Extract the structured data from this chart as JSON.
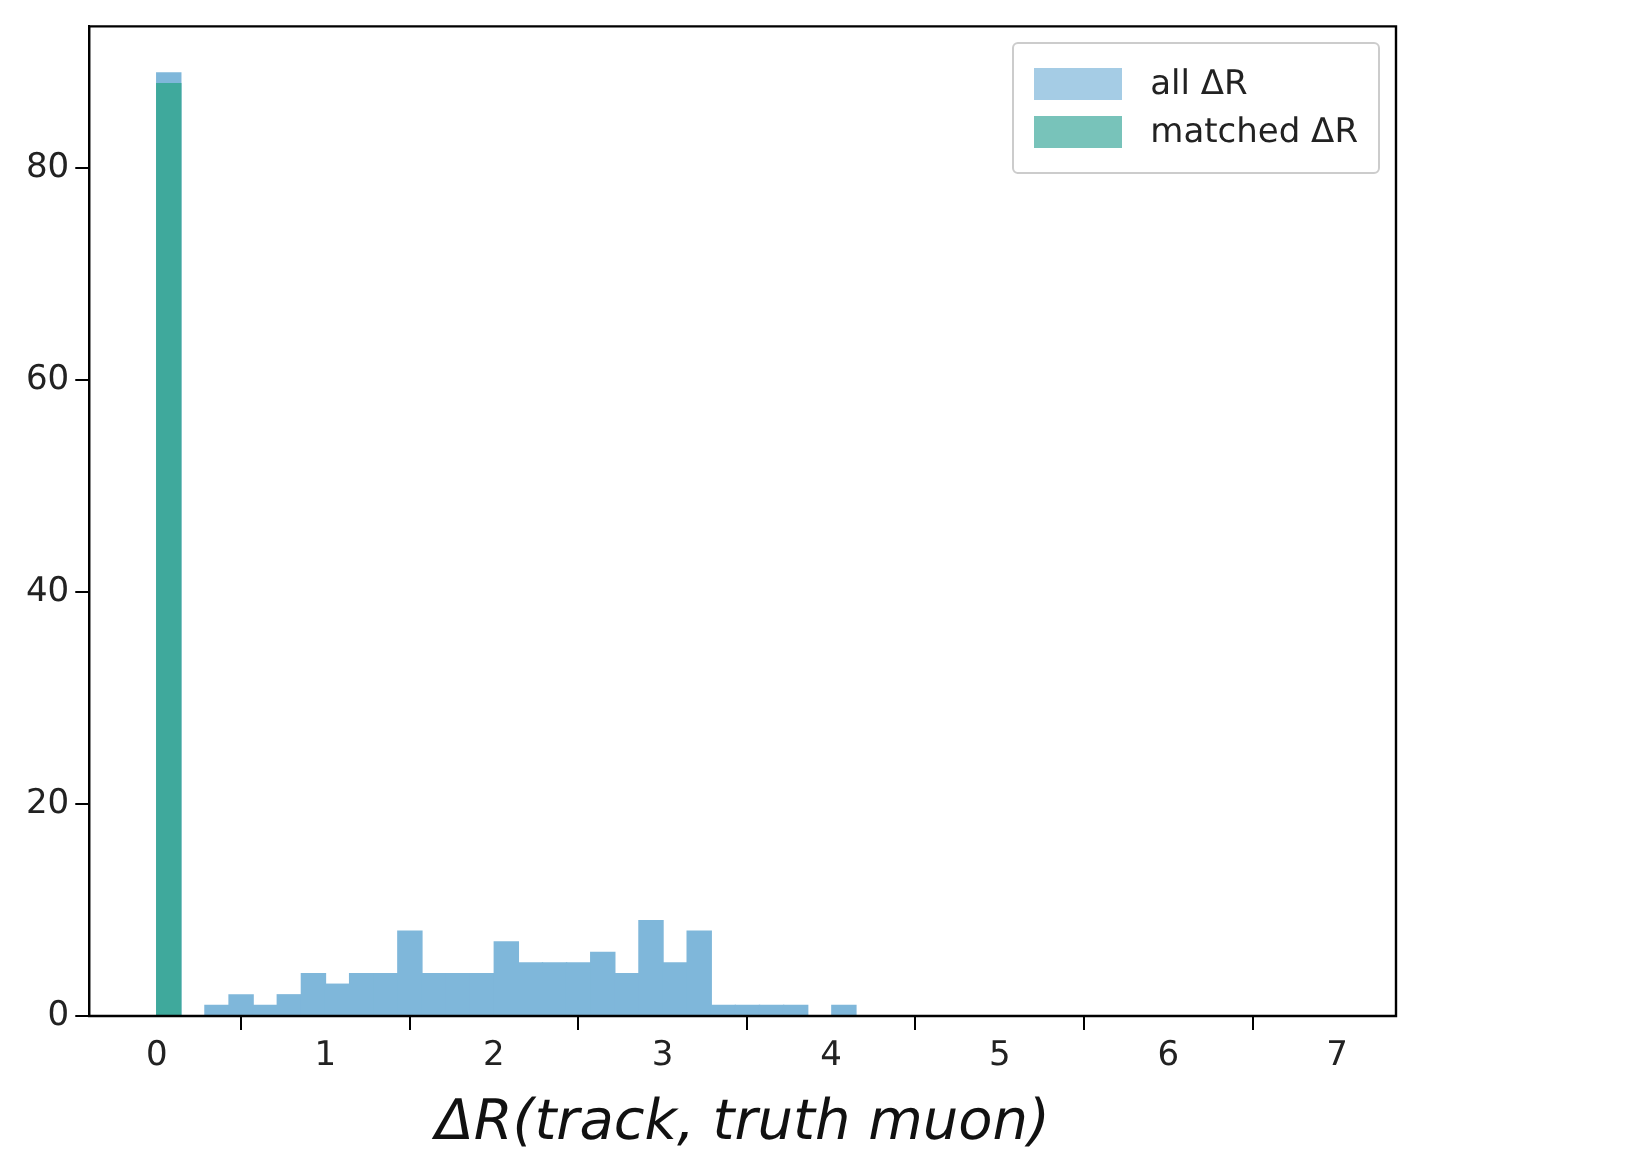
{
  "chart_data": {
    "type": "histogram",
    "xlabel": "ΔR(track, truth muon)",
    "bins": [
      0,
      0.143,
      0.286,
      0.429,
      0.572,
      0.715,
      0.858,
      1.001,
      1.144,
      1.287,
      1.43,
      1.573,
      1.716,
      1.859,
      2.002,
      2.145,
      2.288,
      2.431,
      2.574,
      2.717,
      2.86,
      3.003,
      3.146,
      3.289,
      3.432,
      3.575,
      3.718,
      3.861,
      4.004,
      4.147
    ],
    "series": [
      {
        "name": "all ΔR",
        "color": "#7fb7da",
        "values": [
          89,
          0,
          1,
          2,
          1,
          2,
          4,
          3,
          4,
          4,
          8,
          4,
          4,
          4,
          7,
          5,
          5,
          5,
          6,
          4,
          9,
          5,
          8,
          1,
          1,
          1,
          1,
          0,
          1
        ]
      },
      {
        "name": "matched ΔR",
        "color": "#3fa99c",
        "values": [
          88,
          0,
          0,
          0,
          0,
          0,
          0,
          0,
          0,
          0,
          0,
          0,
          0,
          0,
          0,
          0,
          0,
          0,
          0,
          0,
          0,
          0,
          0,
          0,
          0,
          0,
          0,
          0,
          0
        ]
      }
    ],
    "xlim": [
      -0.4,
      7.35
    ],
    "xticks": [
      0,
      1,
      2,
      3,
      4,
      5,
      6,
      7
    ],
    "ylim": [
      0,
      93.4
    ],
    "yticks": [
      0,
      20,
      40,
      60,
      80
    ],
    "legend": "top right"
  }
}
